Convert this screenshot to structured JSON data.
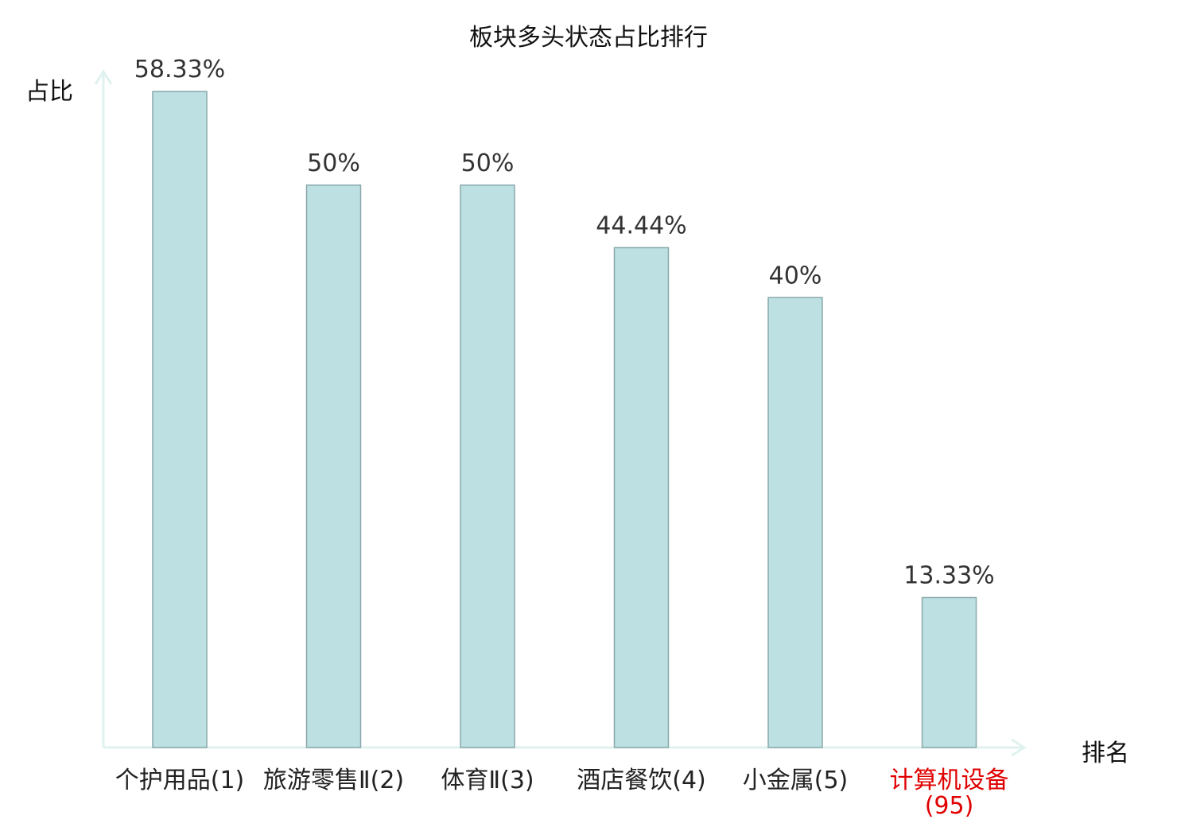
{
  "chart_data": {
    "type": "bar",
    "title": "板块多头状态占比排行",
    "ylabel": "占比",
    "xlabel": "排名",
    "categories": [
      "个护用品(1)",
      "旅游零售Ⅱ(2)",
      "体育Ⅱ(3)",
      "酒店餐饮(4)",
      "小金属(5)",
      "计算机设备(95)"
    ],
    "values": [
      58.33,
      50,
      50,
      44.44,
      40,
      13.33
    ],
    "value_labels": [
      "58.33%",
      "50%",
      "50%",
      "44.44%",
      "40%",
      "13.33%"
    ],
    "highlight_index": 5,
    "ylim": [
      0,
      60
    ],
    "grid": false,
    "legend": "none",
    "colors": {
      "bar_fill": "#bde0e3",
      "bar_stroke": "#8aa8ab",
      "axis": "#dff2ef",
      "label": "#333333",
      "highlight": "#e00000"
    }
  }
}
